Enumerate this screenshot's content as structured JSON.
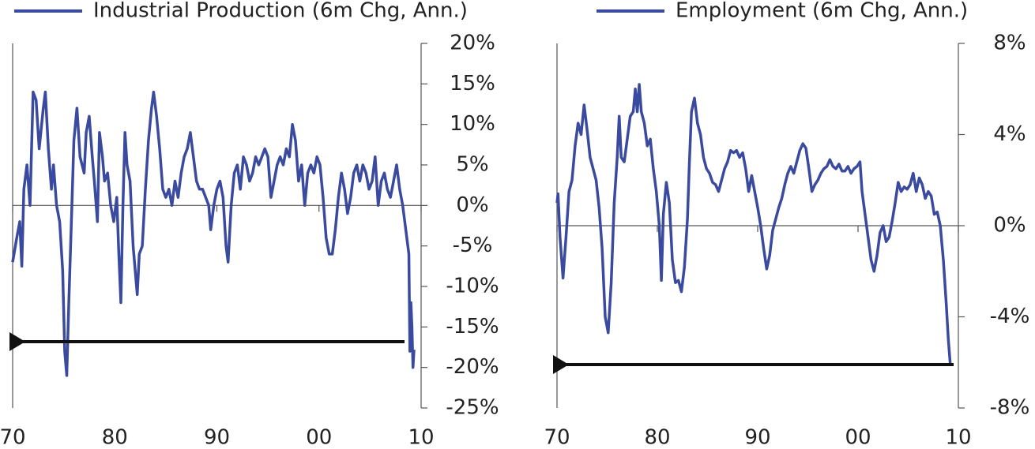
{
  "chart_data": [
    {
      "type": "line",
      "xlim": [
        1970,
        2010
      ],
      "xticks": [
        {
          "value": 1970,
          "label": "70"
        },
        {
          "value": 1980,
          "label": "80"
        },
        {
          "value": 1990,
          "label": "90"
        },
        {
          "value": 2000,
          "label": "00"
        },
        {
          "value": 2010,
          "label": "10"
        }
      ],
      "ylim": [
        -25,
        20
      ],
      "yticks": [
        {
          "value": 20,
          "label": "20%"
        },
        {
          "value": 15,
          "label": "15%"
        },
        {
          "value": 10,
          "label": "10%"
        },
        {
          "value": 5,
          "label": "5%"
        },
        {
          "value": 0,
          "label": "0%"
        },
        {
          "value": -5,
          "label": "-5%"
        },
        {
          "value": -10,
          "label": "-10%"
        },
        {
          "value": -15,
          "label": "-15%"
        },
        {
          "value": -20,
          "label": "-20%"
        },
        {
          "value": -25,
          "label": "-25%"
        }
      ],
      "x": [
        1970.0,
        1970.4,
        1970.7,
        1970.9,
        1971.1,
        1971.4,
        1971.7,
        1972.0,
        1972.3,
        1972.6,
        1973.0,
        1973.2,
        1973.5,
        1973.8,
        1974.0,
        1974.3,
        1974.6,
        1974.9,
        1975.1,
        1975.3,
        1975.5,
        1975.8,
        1976.0,
        1976.3,
        1976.6,
        1977.0,
        1977.2,
        1977.5,
        1977.8,
        1978.0,
        1978.3,
        1978.5,
        1978.8,
        1979.0,
        1979.3,
        1979.6,
        1979.9,
        1980.2,
        1980.4,
        1980.6,
        1980.8,
        1981.0,
        1981.2,
        1981.5,
        1981.8,
        1982.0,
        1982.2,
        1982.4,
        1982.7,
        1983.0,
        1983.3,
        1983.6,
        1983.8,
        1984.1,
        1984.4,
        1984.7,
        1985.0,
        1985.3,
        1985.6,
        1985.9,
        1986.2,
        1986.5,
        1986.8,
        1987.1,
        1987.4,
        1987.7,
        1988.0,
        1988.3,
        1988.6,
        1988.9,
        1989.2,
        1989.4,
        1989.7,
        1990.0,
        1990.3,
        1990.6,
        1990.9,
        1991.1,
        1991.4,
        1991.7,
        1992.0,
        1992.3,
        1992.6,
        1992.9,
        1993.2,
        1993.5,
        1993.8,
        1994.1,
        1994.4,
        1994.7,
        1995.0,
        1995.3,
        1995.6,
        1995.9,
        1996.2,
        1996.5,
        1996.8,
        1997.1,
        1997.4,
        1997.7,
        1998.0,
        1998.3,
        1998.6,
        1998.9,
        1999.2,
        1999.5,
        1999.8,
        2000.1,
        2000.4,
        2000.7,
        2001.0,
        2001.3,
        2001.6,
        2001.9,
        2002.2,
        2002.5,
        2002.8,
        2003.1,
        2003.4,
        2003.7,
        2004.0,
        2004.3,
        2004.6,
        2004.9,
        2005.2,
        2005.5,
        2005.8,
        2006.1,
        2006.4,
        2006.7,
        2007.0,
        2007.3,
        2007.6,
        2007.9,
        2008.2,
        2008.5,
        2008.8,
        2008.9,
        2009.0,
        2009.1,
        2009.2,
        2009.3
      ],
      "series": [
        {
          "name": "Industrial Production (6m Chg, Ann.)",
          "color": "#3a4a9e",
          "values": [
            -7,
            -4,
            -2,
            -7.5,
            2,
            5,
            0,
            14,
            13,
            7,
            12,
            14,
            7,
            2,
            5,
            0,
            -2,
            -8,
            -18,
            -21,
            -12,
            0,
            8,
            12,
            6,
            4,
            9,
            11,
            6,
            3,
            -2,
            9,
            6,
            3,
            4,
            0,
            -2,
            1,
            -6,
            -12,
            0,
            9,
            5,
            3,
            -5,
            -8,
            -11,
            -6,
            -5,
            2,
            8,
            12,
            14,
            11,
            7,
            2,
            1,
            2,
            0,
            3,
            1,
            4,
            6,
            7,
            9,
            6,
            3,
            2,
            2,
            1,
            0,
            -3,
            0,
            2,
            3,
            1,
            -5,
            -7,
            0,
            4,
            5,
            2,
            6,
            5,
            3,
            4,
            6,
            5,
            6,
            7,
            6,
            1,
            3,
            5,
            6,
            5,
            7,
            6,
            10,
            8,
            3,
            5,
            0,
            4,
            5,
            4,
            6,
            5,
            1,
            -4,
            -6,
            -6,
            -3,
            1,
            4,
            2,
            -1,
            1,
            4,
            5,
            3,
            5,
            4,
            2,
            3,
            6,
            0,
            3,
            4,
            2,
            1,
            3,
            5,
            2,
            0,
            -3,
            -6,
            -18,
            -12,
            -15,
            -20,
            -17.8
          ]
        }
      ]
    },
    {
      "type": "line",
      "xlim": [
        1970,
        2010
      ],
      "xticks": [
        {
          "value": 1970,
          "label": "70"
        },
        {
          "value": 1980,
          "label": "80"
        },
        {
          "value": 1990,
          "label": "90"
        },
        {
          "value": 2000,
          "label": "00"
        },
        {
          "value": 2010,
          "label": "10"
        }
      ],
      "ylim": [
        -8,
        8
      ],
      "yticks": [
        {
          "value": 8,
          "label": "8%"
        },
        {
          "value": 4,
          "label": "4%"
        },
        {
          "value": 0,
          "label": "0%"
        },
        {
          "value": -4,
          "label": "-4%"
        },
        {
          "value": -8,
          "label": "-8%"
        }
      ],
      "x": [
        1970.0,
        1970.1,
        1970.3,
        1970.6,
        1970.9,
        1971.2,
        1971.5,
        1971.8,
        1972.1,
        1972.4,
        1972.7,
        1973.0,
        1973.3,
        1973.6,
        1973.9,
        1974.2,
        1974.5,
        1974.8,
        1975.1,
        1975.4,
        1975.7,
        1976.0,
        1976.2,
        1976.4,
        1976.7,
        1977.0,
        1977.3,
        1977.6,
        1977.8,
        1978.0,
        1978.2,
        1978.4,
        1978.7,
        1979.0,
        1979.3,
        1979.6,
        1979.9,
        1980.2,
        1980.4,
        1980.6,
        1980.9,
        1981.2,
        1981.5,
        1981.8,
        1982.1,
        1982.4,
        1982.7,
        1983.0,
        1983.2,
        1983.4,
        1983.7,
        1984.0,
        1984.3,
        1984.6,
        1984.9,
        1985.2,
        1985.5,
        1985.8,
        1986.1,
        1986.4,
        1986.7,
        1987.0,
        1987.3,
        1987.6,
        1987.9,
        1988.2,
        1988.5,
        1988.8,
        1989.1,
        1989.4,
        1989.7,
        1990.0,
        1990.3,
        1990.6,
        1990.9,
        1991.2,
        1991.5,
        1991.8,
        1992.1,
        1992.4,
        1992.7,
        1993.0,
        1993.3,
        1993.6,
        1993.9,
        1994.2,
        1994.5,
        1994.8,
        1995.1,
        1995.4,
        1995.7,
        1996.0,
        1996.3,
        1996.6,
        1996.9,
        1997.2,
        1997.5,
        1997.8,
        1998.1,
        1998.4,
        1998.7,
        1999.0,
        1999.3,
        1999.6,
        1999.9,
        2000.2,
        2000.4,
        2000.7,
        2001.0,
        2001.3,
        2001.6,
        2001.9,
        2002.2,
        2002.5,
        2002.8,
        2003.1,
        2003.4,
        2003.7,
        2004.0,
        2004.3,
        2004.6,
        2004.9,
        2005.2,
        2005.5,
        2005.8,
        2006.1,
        2006.4,
        2006.7,
        2007.0,
        2007.3,
        2007.6,
        2007.9,
        2008.2,
        2008.5,
        2008.8,
        2009.0,
        2009.2
      ],
      "series": [
        {
          "name": "Employment (6m Chg, Ann.)",
          "color": "#3a4a9e",
          "values": [
            1,
            1.4,
            -0.5,
            -2.3,
            -0.5,
            1.5,
            2,
            3.5,
            4.5,
            4,
            5.3,
            4.2,
            3,
            2.5,
            2,
            0.8,
            -1,
            -4,
            -4.7,
            -2.5,
            1,
            3,
            4.8,
            3,
            2.8,
            3.8,
            4.8,
            5,
            6,
            5,
            6.2,
            5,
            4.5,
            3.5,
            3.8,
            2.5,
            1.5,
            0,
            -2.4,
            0.5,
            1.9,
            1,
            -1.5,
            -2.5,
            -2.4,
            -2.9,
            -1.8,
            0.3,
            2.8,
            5,
            5.6,
            4.5,
            4,
            3,
            2.5,
            2.3,
            1.9,
            1.8,
            1.5,
            2,
            2.5,
            2.8,
            3.3,
            3.2,
            3.3,
            3,
            3.2,
            2.5,
            1.5,
            2.2,
            1.5,
            0.8,
            0,
            -1,
            -1.9,
            -1.3,
            -0.2,
            0.3,
            0.8,
            1.2,
            1.8,
            2.3,
            2.6,
            2.3,
            2.8,
            3.3,
            3.6,
            3.4,
            2.5,
            1.5,
            1.8,
            2,
            2.3,
            2.5,
            2.6,
            2.9,
            2.6,
            2.5,
            2.7,
            2.4,
            2.4,
            2.6,
            2.3,
            2.5,
            2.6,
            2.8,
            1.5,
            0.5,
            -0.5,
            -1.5,
            -2,
            -1.3,
            -0.3,
            0,
            -0.7,
            -0.5,
            0.2,
            1,
            1.9,
            1.5,
            1.7,
            1.6,
            1.8,
            2.3,
            1.5,
            2.1,
            1.8,
            1.2,
            1.5,
            1.3,
            0.5,
            0.6,
            0,
            -1.5,
            -3.5,
            -5,
            -6.1
          ]
        }
      ]
    }
  ]
}
